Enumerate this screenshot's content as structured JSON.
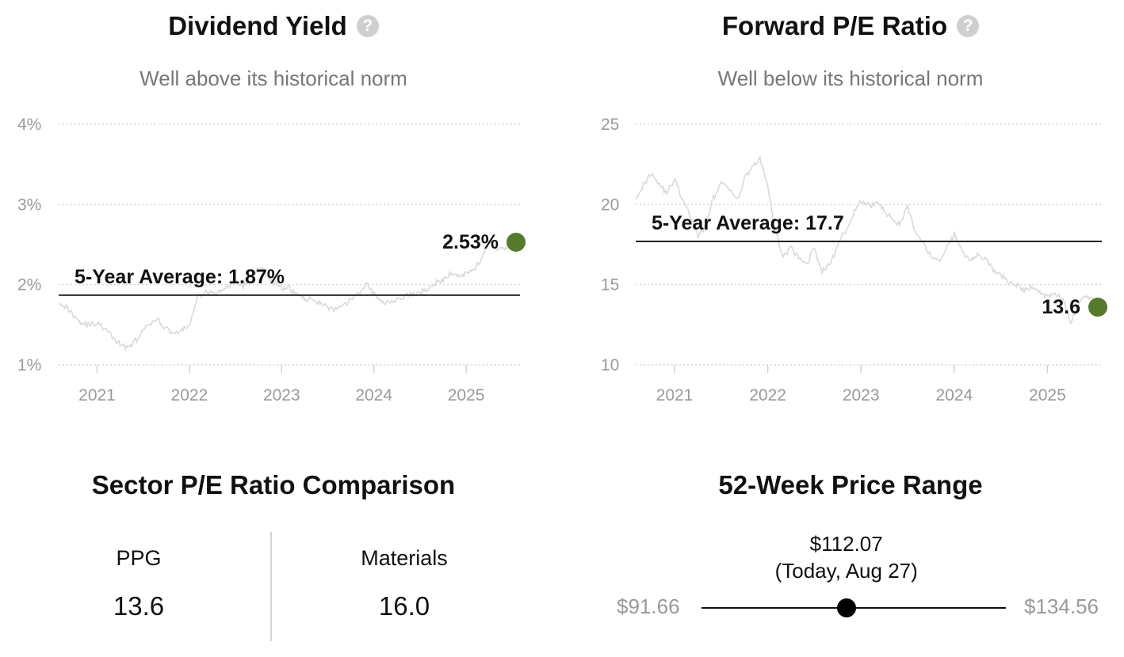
{
  "chart_data": [
    {
      "type": "line",
      "title": "Dividend Yield",
      "subtitle": "Well above its historical norm",
      "y_ticks": [
        "4%",
        "3%",
        "2%",
        "1%"
      ],
      "y_tick_values": [
        4,
        3,
        2,
        1
      ],
      "ylim": [
        1,
        4
      ],
      "x_ticks": [
        "2021",
        "2022",
        "2023",
        "2024",
        "2025"
      ],
      "xlim": [
        "2020-08",
        "2025-08"
      ],
      "grid": true,
      "average": {
        "value": 1.87,
        "label": "5-Year Average: 1.87%"
      },
      "current": {
        "value": 2.53,
        "label": "2.53%"
      },
      "series_color": "#d9d9d9",
      "current_color": "#547a2a",
      "series": [
        {
          "x": [
            "2020-08",
            "2020-09",
            "2020-10",
            "2020-11",
            "2020-12",
            "2021-01",
            "2021-02",
            "2021-03",
            "2021-04",
            "2021-05",
            "2021-06",
            "2021-07",
            "2021-08",
            "2021-09",
            "2021-10",
            "2021-11",
            "2021-12",
            "2022-01",
            "2022-02",
            "2022-03",
            "2022-04",
            "2022-05",
            "2022-06",
            "2022-07",
            "2022-08",
            "2022-09",
            "2022-10",
            "2022-11",
            "2022-12",
            "2023-01",
            "2023-02",
            "2023-03",
            "2023-04",
            "2023-05",
            "2023-06",
            "2023-07",
            "2023-08",
            "2023-09",
            "2023-10",
            "2023-11",
            "2023-12",
            "2024-01",
            "2024-02",
            "2024-03",
            "2024-04",
            "2024-05",
            "2024-06",
            "2024-07",
            "2024-08",
            "2024-09",
            "2024-10",
            "2024-11",
            "2024-12",
            "2025-01",
            "2025-02",
            "2025-03",
            "2025-04",
            "2025-05",
            "2025-06",
            "2025-07",
            "2025-08"
          ],
          "values": [
            1.8,
            1.72,
            1.62,
            1.52,
            1.5,
            1.52,
            1.45,
            1.35,
            1.25,
            1.22,
            1.3,
            1.42,
            1.52,
            1.55,
            1.45,
            1.4,
            1.42,
            1.5,
            1.82,
            1.92,
            1.88,
            1.9,
            1.98,
            2.05,
            1.98,
            2.1,
            2.2,
            2.15,
            2.02,
            1.95,
            1.95,
            1.88,
            1.82,
            1.82,
            1.78,
            1.72,
            1.68,
            1.72,
            1.82,
            1.88,
            2.02,
            1.88,
            1.78,
            1.8,
            1.82,
            1.85,
            1.88,
            1.9,
            1.95,
            2.02,
            2.05,
            2.15,
            2.1,
            2.15,
            2.2,
            2.3,
            2.55,
            2.45,
            2.45,
            2.5,
            2.53
          ]
        }
      ]
    },
    {
      "type": "line",
      "title": "Forward P/E Ratio",
      "subtitle": "Well below its historical norm",
      "y_ticks": [
        "25",
        "20",
        "15",
        "10"
      ],
      "y_tick_values": [
        25,
        20,
        15,
        10
      ],
      "ylim": [
        10,
        25
      ],
      "x_ticks": [
        "2021",
        "2022",
        "2023",
        "2024",
        "2025"
      ],
      "xlim": [
        "2020-08",
        "2025-08"
      ],
      "grid": true,
      "average": {
        "value": 17.7,
        "label": "5-Year Average: 17.7"
      },
      "current": {
        "value": 13.6,
        "label": "13.6"
      },
      "series_color": "#d9d9d9",
      "current_color": "#547a2a",
      "series": [
        {
          "x": [
            "2020-08",
            "2020-09",
            "2020-10",
            "2020-11",
            "2020-12",
            "2021-01",
            "2021-02",
            "2021-03",
            "2021-04",
            "2021-05",
            "2021-06",
            "2021-07",
            "2021-08",
            "2021-09",
            "2021-10",
            "2021-11",
            "2021-12",
            "2022-01",
            "2022-02",
            "2022-03",
            "2022-04",
            "2022-05",
            "2022-06",
            "2022-07",
            "2022-08",
            "2022-09",
            "2022-10",
            "2022-11",
            "2022-12",
            "2023-01",
            "2023-02",
            "2023-03",
            "2023-04",
            "2023-05",
            "2023-06",
            "2023-07",
            "2023-08",
            "2023-09",
            "2023-10",
            "2023-11",
            "2023-12",
            "2024-01",
            "2024-02",
            "2024-03",
            "2024-04",
            "2024-05",
            "2024-06",
            "2024-07",
            "2024-08",
            "2024-09",
            "2024-10",
            "2024-11",
            "2024-12",
            "2025-01",
            "2025-02",
            "2025-03",
            "2025-04",
            "2025-05",
            "2025-06",
            "2025-07",
            "2025-08"
          ],
          "values": [
            20.5,
            21.2,
            22.0,
            21.3,
            20.7,
            21.6,
            20.3,
            19.3,
            18.0,
            18.7,
            20.4,
            21.3,
            21.0,
            20.2,
            21.6,
            22.4,
            22.8,
            21.2,
            18.2,
            16.8,
            17.3,
            16.6,
            16.3,
            17.3,
            15.8,
            16.3,
            17.4,
            18.4,
            19.4,
            20.2,
            19.9,
            20.1,
            19.6,
            19.1,
            18.8,
            19.9,
            18.2,
            17.5,
            16.8,
            16.4,
            17.3,
            18.1,
            17.1,
            16.6,
            16.9,
            16.6,
            15.9,
            15.6,
            15.2,
            15.0,
            14.6,
            14.9,
            14.5,
            14.3,
            14.5,
            14.0,
            12.6,
            13.9,
            14.3,
            14.0,
            13.6
          ]
        }
      ]
    }
  ],
  "sector": {
    "title": "Sector P/E Ratio Comparison",
    "items": [
      {
        "name": "PPG",
        "value": "13.6"
      },
      {
        "name": "Materials",
        "value": "16.0"
      }
    ]
  },
  "price_range": {
    "title": "52-Week Price Range",
    "low": "$91.66",
    "high": "$134.56",
    "current": "$112.07",
    "current_note": "(Today, Aug 27)",
    "low_value": 91.66,
    "high_value": 134.56,
    "current_value": 112.07
  }
}
